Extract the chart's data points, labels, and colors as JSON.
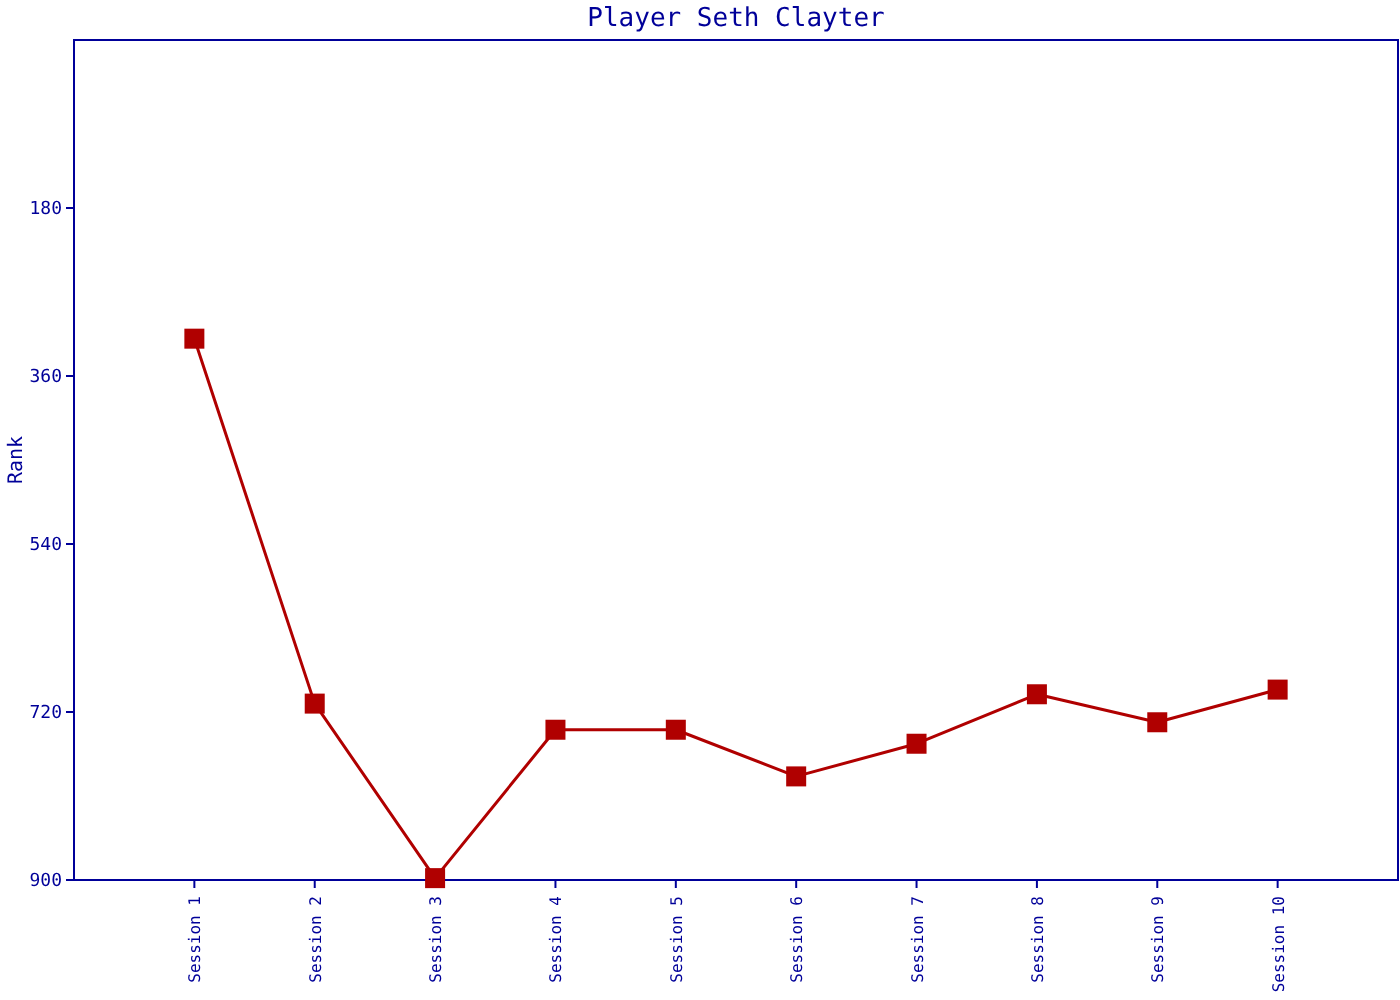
{
  "chart_data": {
    "type": "line",
    "title": "Player Seth Clayter",
    "ylabel": "Rank",
    "categories": [
      "Session 1",
      "Session 2",
      "Session 3",
      "Session 4",
      "Session 5",
      "Session 6",
      "Session 7",
      "Session 8",
      "Session 9",
      "Session 10"
    ],
    "series": [
      {
        "color": "#b00000",
        "values": [
          320,
          711,
          898,
          739,
          739,
          789,
          754,
          701,
          731,
          696
        ]
      }
    ],
    "ylim": [
      900,
      0
    ],
    "yticks": [
      180,
      360,
      540,
      720,
      900
    ],
    "marker": "square",
    "line_style": "solid"
  }
}
